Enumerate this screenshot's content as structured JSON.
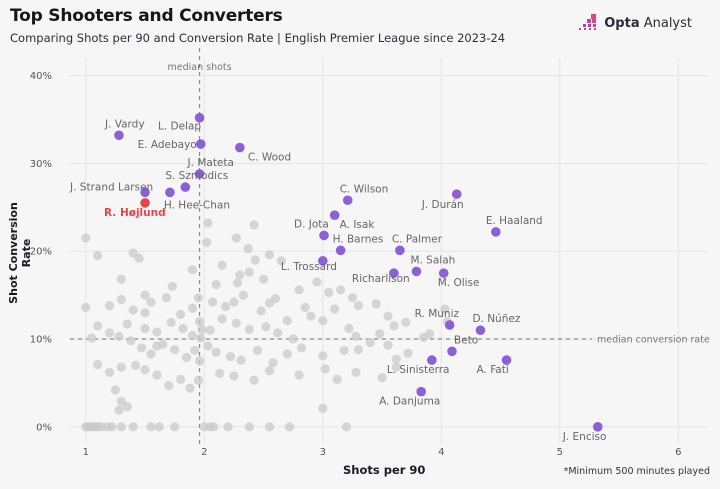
{
  "header": {
    "title": "Top Shooters and Converters",
    "subtitle": "Comparing Shots per 90 and Conversion Rate | English Premier League since 2023-24",
    "logo_bold": "Opta",
    "logo_rest": " Analyst"
  },
  "footnote": "*Minimum 500 minutes played",
  "colors": {
    "highlight": "#8e5fd9",
    "featured": "#e0474c",
    "other": "#c9c9c9",
    "background": "#f6f6f6"
  },
  "chart_data": {
    "type": "scatter",
    "title": "Top Shooters and Converters",
    "xlabel": "Shots per 90",
    "ylabel": "Shot Conversion Rate",
    "xlim": [
      0.85,
      6.25
    ],
    "ylim": [
      -1.5,
      42
    ],
    "x_ticks": [
      1,
      2,
      3,
      4,
      5,
      6
    ],
    "x_tick_labels": [
      "1",
      "2",
      "3",
      "4",
      "5",
      "6"
    ],
    "y_ticks": [
      0,
      10,
      20,
      30,
      40
    ],
    "y_tick_labels": [
      "0%",
      "10%",
      "20%",
      "30%",
      "40%"
    ],
    "grid": true,
    "reference_lines": [
      {
        "axis": "x",
        "value": 1.96,
        "label": "median shots"
      },
      {
        "axis": "y",
        "value": 10,
        "label": "median conversion rate"
      }
    ],
    "featured": [
      {
        "name": "R. Højlund",
        "x": 1.5,
        "y": 25.5
      }
    ],
    "highlighted": [
      {
        "name": "L. Delap",
        "x": 1.96,
        "y": 35.2
      },
      {
        "name": "J. Vardy",
        "x": 1.28,
        "y": 33.2
      },
      {
        "name": "E. Adebayo",
        "x": 1.97,
        "y": 32.2
      },
      {
        "name": "C. Wood",
        "x": 2.3,
        "y": 31.8
      },
      {
        "name": "J. Mateta",
        "x": 1.96,
        "y": 28.8
      },
      {
        "name": "S. Szmodics",
        "x": 1.84,
        "y": 27.3
      },
      {
        "name": "J. Strand Larsen",
        "x": 1.5,
        "y": 26.7
      },
      {
        "name": "H. Hee-Chan",
        "x": 1.71,
        "y": 26.7
      },
      {
        "name": "J. Durán",
        "x": 4.13,
        "y": 26.5
      },
      {
        "name": "C. Wilson",
        "x": 3.21,
        "y": 25.8
      },
      {
        "name": "A. Isak",
        "x": 3.1,
        "y": 24.1
      },
      {
        "name": "E. Haaland",
        "x": 4.46,
        "y": 22.2
      },
      {
        "name": "D. Jota",
        "x": 3.01,
        "y": 21.8
      },
      {
        "name": "H. Barnes",
        "x": 3.15,
        "y": 20.1
      },
      {
        "name": "C. Palmer",
        "x": 3.65,
        "y": 20.1
      },
      {
        "name": "L. Trossard",
        "x": 3.0,
        "y": 18.9
      },
      {
        "name": "Richarlison",
        "x": 3.6,
        "y": 17.5
      },
      {
        "name": "M. Salah",
        "x": 3.79,
        "y": 17.7
      },
      {
        "name": "M. Olise",
        "x": 4.02,
        "y": 17.5
      },
      {
        "name": "R. Muniz",
        "x": 4.07,
        "y": 11.6
      },
      {
        "name": "D. Núñez",
        "x": 4.33,
        "y": 11.0
      },
      {
        "name": "Beto",
        "x": 4.09,
        "y": 8.6
      },
      {
        "name": "L. Sinisterra",
        "x": 3.92,
        "y": 7.6
      },
      {
        "name": "A. Fati",
        "x": 4.55,
        "y": 7.6
      },
      {
        "name": "A. Danjuma",
        "x": 3.83,
        "y": 4.0
      },
      {
        "name": "J. Enciso",
        "x": 5.32,
        "y": 0.0
      }
    ],
    "others": [
      [
        1.0,
        21.5
      ],
      [
        1.1,
        19.5
      ],
      [
        1.3,
        16.8
      ],
      [
        1.4,
        19.8
      ],
      [
        1.45,
        19.2
      ],
      [
        1.73,
        16.0
      ],
      [
        1.9,
        17.9
      ],
      [
        1.5,
        15.0
      ],
      [
        1.2,
        13.8
      ],
      [
        1.3,
        14.5
      ],
      [
        1.4,
        13.3
      ],
      [
        1.5,
        13.0
      ],
      [
        1.55,
        14.2
      ],
      [
        1.68,
        14.7
      ],
      [
        1.8,
        12.8
      ],
      [
        1.9,
        13.5
      ],
      [
        1.95,
        14.7
      ],
      [
        1.0,
        13.6
      ],
      [
        1.1,
        11.5
      ],
      [
        1.35,
        11.7
      ],
      [
        1.5,
        11.2
      ],
      [
        1.6,
        10.8
      ],
      [
        1.72,
        11.9
      ],
      [
        1.82,
        11.2
      ],
      [
        1.9,
        10.4
      ],
      [
        1.05,
        10.1
      ],
      [
        1.2,
        10.7
      ],
      [
        1.28,
        10.3
      ],
      [
        1.38,
        9.8
      ],
      [
        1.47,
        9.0
      ],
      [
        1.55,
        8.3
      ],
      [
        1.65,
        9.4
      ],
      [
        1.75,
        8.8
      ],
      [
        1.85,
        7.9
      ],
      [
        1.92,
        8.7
      ],
      [
        1.1,
        7.1
      ],
      [
        1.2,
        6.2
      ],
      [
        1.3,
        6.8
      ],
      [
        1.42,
        7.0
      ],
      [
        1.5,
        6.5
      ],
      [
        1.6,
        5.9
      ],
      [
        1.7,
        4.7
      ],
      [
        1.8,
        5.4
      ],
      [
        1.88,
        4.4
      ],
      [
        1.95,
        5.3
      ],
      [
        1.25,
        4.2
      ],
      [
        1.3,
        2.9
      ],
      [
        1.35,
        2.3
      ],
      [
        1.28,
        1.9
      ],
      [
        1.6,
        9.2
      ],
      [
        1.0,
        0
      ],
      [
        1.02,
        0
      ],
      [
        1.04,
        0
      ],
      [
        1.06,
        0
      ],
      [
        1.08,
        0
      ],
      [
        1.1,
        0
      ],
      [
        1.13,
        0
      ],
      [
        1.18,
        0
      ],
      [
        1.22,
        0
      ],
      [
        1.3,
        0
      ],
      [
        1.4,
        0
      ],
      [
        1.55,
        0
      ],
      [
        1.62,
        0
      ],
      [
        1.75,
        0
      ],
      [
        2.03,
        23.2
      ],
      [
        2.27,
        21.5
      ],
      [
        2.42,
        23.0
      ],
      [
        2.37,
        20.3
      ],
      [
        2.43,
        19.0
      ],
      [
        2.02,
        21.0
      ],
      [
        2.55,
        19.6
      ],
      [
        2.65,
        18.9
      ],
      [
        2.15,
        18.4
      ],
      [
        2.3,
        17.3
      ],
      [
        2.38,
        17.6
      ],
      [
        2.1,
        16.2
      ],
      [
        2.28,
        16.4
      ],
      [
        2.5,
        16.8
      ],
      [
        2.6,
        14.6
      ],
      [
        2.8,
        15.6
      ],
      [
        2.95,
        16.5
      ],
      [
        3.05,
        15.3
      ],
      [
        3.15,
        15.6
      ],
      [
        3.25,
        14.7
      ],
      [
        2.07,
        14.2
      ],
      [
        2.18,
        13.7
      ],
      [
        2.25,
        14.2
      ],
      [
        2.33,
        15.0
      ],
      [
        2.48,
        13.2
      ],
      [
        2.55,
        14.1
      ],
      [
        2.7,
        12.1
      ],
      [
        2.85,
        13.6
      ],
      [
        3.0,
        12.1
      ],
      [
        3.1,
        13.4
      ],
      [
        3.3,
        13.8
      ],
      [
        3.45,
        14.0
      ],
      [
        3.55,
        12.6
      ],
      [
        3.6,
        11.5
      ],
      [
        3.48,
        10.6
      ],
      [
        3.7,
        11.9
      ],
      [
        3.85,
        10.2
      ],
      [
        3.9,
        10.6
      ],
      [
        4.03,
        13.4
      ],
      [
        4.05,
        12.0
      ],
      [
        2.05,
        11.0
      ],
      [
        2.15,
        12.3
      ],
      [
        2.27,
        11.8
      ],
      [
        2.38,
        11.1
      ],
      [
        2.52,
        11.4
      ],
      [
        2.62,
        10.7
      ],
      [
        2.75,
        10.0
      ],
      [
        2.9,
        12.6
      ],
      [
        3.22,
        11.2
      ],
      [
        3.28,
        10.3
      ],
      [
        2.03,
        9.2
      ],
      [
        2.1,
        8.5
      ],
      [
        2.22,
        8.0
      ],
      [
        2.31,
        7.6
      ],
      [
        2.45,
        8.7
      ],
      [
        2.58,
        7.3
      ],
      [
        2.7,
        8.3
      ],
      [
        2.82,
        9.0
      ],
      [
        3.0,
        8.1
      ],
      [
        3.18,
        8.7
      ],
      [
        3.3,
        8.8
      ],
      [
        3.4,
        9.6
      ],
      [
        3.55,
        9.3
      ],
      [
        3.62,
        7.7
      ],
      [
        3.72,
        8.4
      ],
      [
        2.13,
        6.1
      ],
      [
        2.25,
        5.8
      ],
      [
        2.42,
        5.3
      ],
      [
        2.55,
        6.4
      ],
      [
        2.8,
        5.9
      ],
      [
        3.02,
        6.6
      ],
      [
        3.12,
        5.4
      ],
      [
        3.28,
        6.2
      ],
      [
        3.5,
        5.6
      ],
      [
        3.62,
        6.8
      ],
      [
        3.0,
        2.1
      ],
      [
        2.08,
        0
      ],
      [
        2.2,
        0
      ],
      [
        2.55,
        0
      ],
      [
        2.72,
        0
      ],
      [
        3.2,
        0
      ],
      [
        2.38,
        0
      ],
      [
        2.0,
        0
      ],
      [
        2.05,
        0
      ],
      [
        1.96,
        7.5
      ],
      [
        1.97,
        10.1
      ],
      [
        1.98,
        11.1
      ],
      [
        1.96,
        12.0
      ]
    ]
  }
}
